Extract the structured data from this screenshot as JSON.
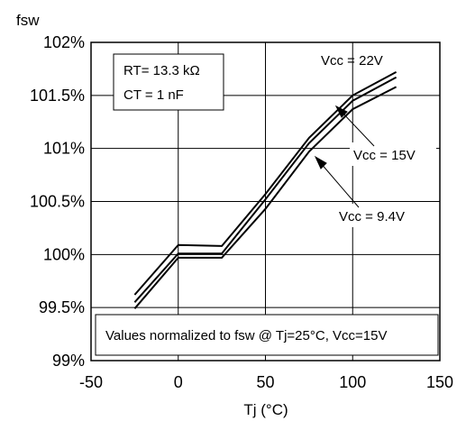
{
  "chart_data": {
    "type": "line",
    "ylabel": "fsw",
    "xlabel": "Tj  (°C)",
    "xlim": [
      -50,
      150
    ],
    "ylim": [
      99,
      102
    ],
    "x_ticks": [
      "-50",
      "0",
      "50",
      "100",
      "150"
    ],
    "x_tick_values": [
      -50,
      0,
      50,
      100,
      150
    ],
    "y_ticks": [
      "99%",
      "99.5%",
      "100%",
      "100.5%",
      "101%",
      "101.5%",
      "102%"
    ],
    "y_tick_values": [
      99,
      99.5,
      100,
      100.5,
      101,
      101.5,
      102
    ],
    "grid": true,
    "series": [
      {
        "name": "Vcc = 22V",
        "x": [
          -25,
          0,
          25,
          50,
          75,
          100,
          125
        ],
        "y": [
          99.62,
          100.09,
          100.08,
          100.57,
          101.1,
          101.5,
          101.72
        ]
      },
      {
        "name": "Vcc = 15V",
        "x": [
          -25,
          0,
          25,
          50,
          75,
          100,
          125
        ],
        "y": [
          99.55,
          100.01,
          100.01,
          100.52,
          101.05,
          101.45,
          101.67
        ]
      },
      {
        "name": "Vcc = 9.4V",
        "x": [
          -25,
          0,
          25,
          50,
          75,
          100,
          125
        ],
        "y": [
          99.49,
          99.97,
          99.97,
          100.43,
          100.97,
          101.37,
          101.58
        ]
      }
    ],
    "params_box": {
      "rt": "RT= 13.3 kΩ",
      "ct": "CT = 1 nF"
    },
    "labels": {
      "vcc22": "Vcc = 22V",
      "vcc15": "Vcc = 15V",
      "vcc94": "Vcc = 9.4V"
    },
    "note": "Values normalized to fsw  @ Tj=25°C, Vcc=15V"
  }
}
